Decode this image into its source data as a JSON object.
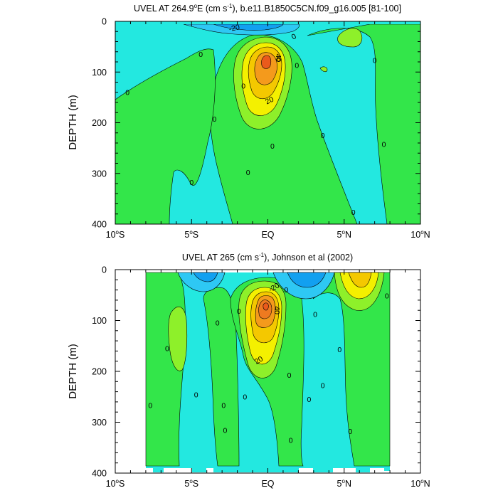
{
  "palette": {
    "cyan": "#23e8e0",
    "light_cyan": "#55f0e4",
    "green": "#33e64a",
    "light_green": "#55ee55",
    "lime": "#8ef02a",
    "yellow": "#f4f000",
    "gold": "#f4c800",
    "orange": "#f49a1c",
    "dark_orange": "#ee7a20",
    "red_orange": "#ea5a1c",
    "blue": "#12a0f0",
    "sky_blue": "#2ec8f4",
    "line": "#000000"
  },
  "chart_data": [
    {
      "type": "contour",
      "title": "UVEL AT 264.9°E (cm s⁻¹), b.e11.B1850C5CN.f09_g16.005 [81-100]",
      "title_parts": {
        "prefix": "UVEL AT 264.9",
        "sup_degree": "o",
        "mid": "E (cm s",
        "sup_exp": "-1",
        "suffix": "), b.e11.B1850C5CN.f09_g16.005 [81-100]"
      },
      "xlabel": "",
      "ylabel": "DEPTH (m)",
      "xlim": [
        -10,
        10
      ],
      "ylim": [
        400,
        0
      ],
      "x_ticks": [
        {
          "value": -10,
          "main": "10",
          "sup": "o",
          "suffix": "S"
        },
        {
          "value": -5,
          "main": "5",
          "sup": "o",
          "suffix": "S"
        },
        {
          "value": 0,
          "main": "EQ",
          "sup": "",
          "suffix": ""
        },
        {
          "value": 5,
          "main": "5",
          "sup": "o",
          "suffix": "N"
        },
        {
          "value": 10,
          "main": "10",
          "sup": "o",
          "suffix": "N"
        }
      ],
      "y_ticks": [
        0,
        100,
        200,
        300,
        400
      ],
      "contour_interval": 10,
      "max_core": {
        "lat": 0,
        "depth": 75,
        "value": 50
      },
      "contour_labels": [
        {
          "text": "-20",
          "lat": -2.2,
          "depth": 13,
          "rot": -12
        },
        {
          "text": "0",
          "lat": 1.7,
          "depth": 30,
          "rot": -30
        },
        {
          "text": "0",
          "lat": -4.4,
          "depth": 65,
          "rot": 0
        },
        {
          "text": "0",
          "lat": -9.2,
          "depth": 140,
          "rot": 0
        },
        {
          "text": "40",
          "lat": 0.7,
          "depth": 72,
          "rot": 90
        },
        {
          "text": "0",
          "lat": 0.7,
          "depth": 75,
          "rot": 0
        },
        {
          "text": "0",
          "lat": 1.9,
          "depth": 87,
          "rot": 0
        },
        {
          "text": "0",
          "lat": 7,
          "depth": 77,
          "rot": 0
        },
        {
          "text": "0",
          "lat": -1.6,
          "depth": 128,
          "rot": 0
        },
        {
          "text": "20",
          "lat": 0.1,
          "depth": 156,
          "rot": -25
        },
        {
          "text": "0",
          "lat": -3.5,
          "depth": 193,
          "rot": 0
        },
        {
          "text": "0",
          "lat": 3.6,
          "depth": 225,
          "rot": 0
        },
        {
          "text": "0",
          "lat": 7.6,
          "depth": 243,
          "rot": 0
        },
        {
          "text": "0",
          "lat": 0.3,
          "depth": 246,
          "rot": 0
        },
        {
          "text": "0",
          "lat": -1.3,
          "depth": 298,
          "rot": 0
        },
        {
          "text": "0",
          "lat": -5,
          "depth": 318,
          "rot": 0
        },
        {
          "text": "0",
          "lat": 5.6,
          "depth": 377,
          "rot": 0
        }
      ]
    },
    {
      "type": "contour",
      "title": "UVEL AT 265 (cm s⁻¹), Johnson et al (2002)",
      "title_parts": {
        "prefix": "UVEL AT 265 (cm s",
        "sup_degree": "",
        "mid": "",
        "sup_exp": "-1",
        "suffix": "), Johnson et al (2002)"
      },
      "xlabel": "",
      "ylabel": "DEPTH (m)",
      "xlim": [
        -10,
        10
      ],
      "ylim": [
        400,
        0
      ],
      "data_lat_range": [
        -8,
        8
      ],
      "x_ticks": [
        {
          "value": -10,
          "main": "10",
          "sup": "o",
          "suffix": "S"
        },
        {
          "value": -5,
          "main": "5",
          "sup": "o",
          "suffix": "S"
        },
        {
          "value": 0,
          "main": "EQ",
          "sup": "",
          "suffix": ""
        },
        {
          "value": 5,
          "main": "5",
          "sup": "o",
          "suffix": "N"
        },
        {
          "value": 10,
          "main": "10",
          "sup": "o",
          "suffix": "N"
        }
      ],
      "y_ticks": [
        0,
        100,
        200,
        300,
        400
      ],
      "contour_interval": 10,
      "max_core": {
        "lat": 0,
        "depth": 65,
        "value": 70
      },
      "contour_labels": [
        {
          "text": "-20",
          "lat": 0.4,
          "depth": 35,
          "rot": -30
        },
        {
          "text": "0",
          "lat": 1.2,
          "depth": 40,
          "rot": 0
        },
        {
          "text": "40",
          "lat": 0.6,
          "depth": 80,
          "rot": 90
        },
        {
          "text": "0",
          "lat": 7.8,
          "depth": 52,
          "rot": 0
        },
        {
          "text": "0",
          "lat": -1.9,
          "depth": 82,
          "rot": 0
        },
        {
          "text": "0",
          "lat": 3.1,
          "depth": 88,
          "rot": 0
        },
        {
          "text": "0",
          "lat": -3.3,
          "depth": 105,
          "rot": 0
        },
        {
          "text": "0",
          "lat": -6.6,
          "depth": 155,
          "rot": 0
        },
        {
          "text": "0",
          "lat": 4.7,
          "depth": 157,
          "rot": 0
        },
        {
          "text": "20",
          "lat": -0.6,
          "depth": 178,
          "rot": -30
        },
        {
          "text": "0",
          "lat": 1.4,
          "depth": 208,
          "rot": 0
        },
        {
          "text": "0",
          "lat": 3.6,
          "depth": 228,
          "rot": 0
        },
        {
          "text": "0",
          "lat": -4.7,
          "depth": 246,
          "rot": 0
        },
        {
          "text": "0",
          "lat": -1.5,
          "depth": 250,
          "rot": 0
        },
        {
          "text": "0",
          "lat": 2.7,
          "depth": 255,
          "rot": 0
        },
        {
          "text": "0",
          "lat": -7.7,
          "depth": 267,
          "rot": 0
        },
        {
          "text": "0",
          "lat": -2.9,
          "depth": 267,
          "rot": 0
        },
        {
          "text": "0",
          "lat": -2.8,
          "depth": 316,
          "rot": 0
        },
        {
          "text": "0",
          "lat": 5.4,
          "depth": 318,
          "rot": 0
        },
        {
          "text": "0",
          "lat": 1.5,
          "depth": 336,
          "rot": 0
        }
      ]
    }
  ]
}
